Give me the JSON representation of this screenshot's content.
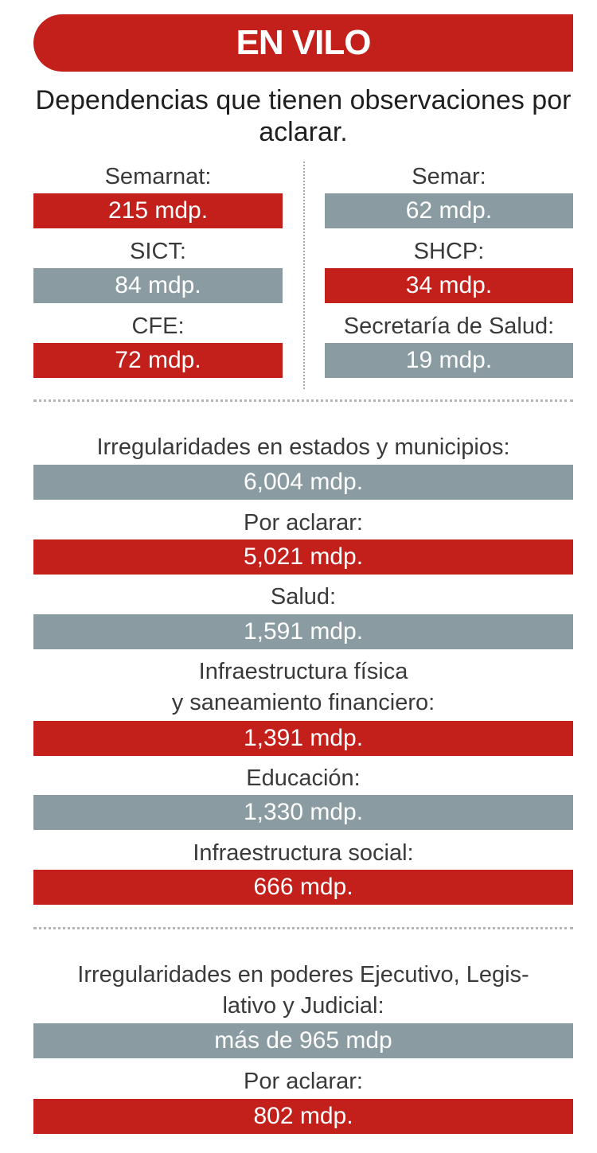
{
  "header": {
    "title": "EN VILO"
  },
  "subtitle": "Dependencias que tienen observaciones por aclarar.",
  "dependencias": {
    "left": [
      {
        "label": "Semarnat:",
        "value": "215 mdp."
      },
      {
        "label": "SICT:",
        "value": "84 mdp."
      },
      {
        "label": "CFE:",
        "value": "72 mdp."
      }
    ],
    "right": [
      {
        "label": "Semar:",
        "value": "62 mdp."
      },
      {
        "label": "SHCP:",
        "value": "34 mdp."
      },
      {
        "label": "Secretaría de Salud:",
        "value": "19 mdp."
      }
    ]
  },
  "estados": [
    {
      "label": "Irregularidades en estados y municipios:",
      "value": "6,004 mdp."
    },
    {
      "label": "Por aclarar:",
      "value": "5,021 mdp."
    },
    {
      "label": "Salud:",
      "value": "1,591 mdp."
    },
    {
      "label_line1": "Infraestructura física",
      "label_line2": "y saneamiento financiero:",
      "value": "1,391 mdp."
    },
    {
      "label": "Educación:",
      "value": "1,330 mdp."
    },
    {
      "label": "Infraestructura social:",
      "value": "666 mdp."
    }
  ],
  "poderes": [
    {
      "label_line1": "Irregularidades en poderes Ejecutivo, Legis-",
      "label_line2": "lativo y Judicial:",
      "value": "más de 965 mdp"
    },
    {
      "label": "Por aclarar:",
      "value": "802 mdp."
    }
  ],
  "colors": {
    "red": "#c3201b",
    "gray": "#8a9ba2"
  }
}
